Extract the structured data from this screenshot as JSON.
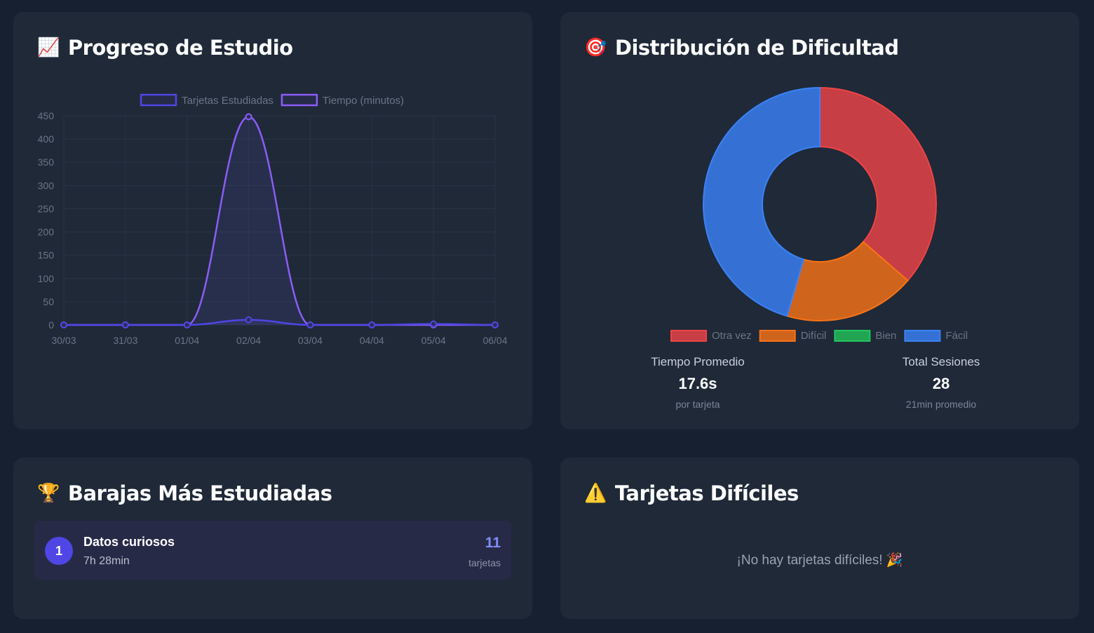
{
  "progress": {
    "icon": "chart-increasing-icon",
    "title": "Progreso de Estudio"
  },
  "chart_data": [
    {
      "type": "line",
      "categories": [
        "30/03",
        "31/03",
        "01/04",
        "02/04",
        "03/04",
        "04/04",
        "05/04",
        "06/04"
      ],
      "series": [
        {
          "name": "Tarjetas Estudiadas",
          "values": [
            0,
            0,
            0,
            11,
            0,
            0,
            2,
            0
          ],
          "color": "#4f46e5"
        },
        {
          "name": "Tiempo (minutos)",
          "values": [
            0,
            0,
            0,
            448,
            0,
            0,
            0,
            0
          ],
          "color": "#8b5cf6"
        }
      ],
      "ylim": [
        0,
        450
      ],
      "yticks": [
        0,
        50,
        100,
        150,
        200,
        250,
        300,
        350,
        400,
        450
      ],
      "grid": true,
      "legend": "top"
    },
    {
      "type": "pie",
      "donut": true,
      "categories": [
        "Otra vez",
        "Difícil",
        "Bien",
        "Fácil"
      ],
      "values": [
        4,
        2,
        0,
        5
      ],
      "colors": [
        "#c73e45",
        "#cf641d",
        "#21a553",
        "#3571d4"
      ],
      "borders": [
        "#ef4444",
        "#f97316",
        "#22c55e",
        "#3b82f6"
      ],
      "legend": "bottom"
    }
  ],
  "difficulty": {
    "icon": "target-icon",
    "title": "Distribución de Dificultad",
    "stats": [
      {
        "label": "Tiempo Promedio",
        "value": "17.6s",
        "sub": "por tarjeta"
      },
      {
        "label": "Total Sesiones",
        "value": "28",
        "sub": "21min promedio"
      }
    ]
  },
  "decks": {
    "icon": "trophy-icon",
    "title": "Barajas Más Estudiadas",
    "items": [
      {
        "rank": "1",
        "name": "Datos curiosos",
        "time": "7h 28min",
        "count": "11",
        "count_label": "tarjetas"
      }
    ]
  },
  "hard": {
    "icon": "warning-icon",
    "title": "Tarjetas Difíciles",
    "empty": "¡No hay tarjetas difíciles! 🎉"
  }
}
